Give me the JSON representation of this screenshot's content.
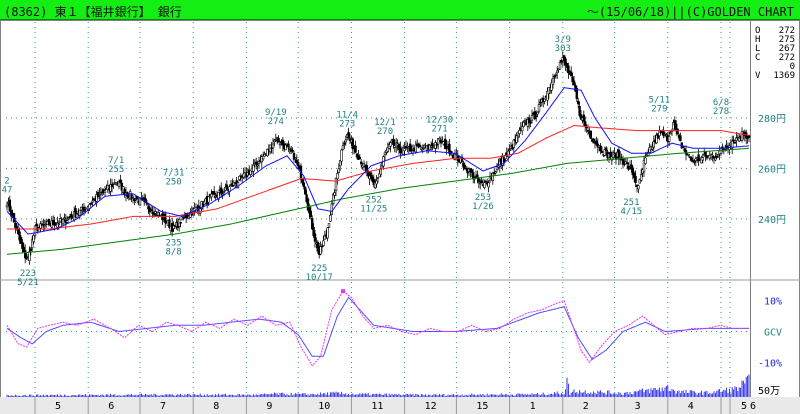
{
  "header": {
    "title": "(8362) 東１【福井銀行】 銀行",
    "right": "〜(15/06/18)||(C)GOLDEN CHART"
  },
  "ohlc_panel": [
    {
      "label": "O",
      "value": "272"
    },
    {
      "label": "H",
      "value": "275"
    },
    {
      "label": "L",
      "value": "267"
    },
    {
      "label": "C",
      "value": "272"
    },
    {
      "label": "",
      "value": "0"
    },
    {
      "label": "V",
      "value": "1369"
    }
  ],
  "colors": {
    "price_candles": "#000000",
    "ma_short": "#1010ff",
    "ma_mid": "#ff2020",
    "ma_long": "#008000",
    "gcv": "#ee33ee",
    "gcv_signal": "#5050ff",
    "volume": "#2020ee",
    "grid": "#2a9a7a",
    "axis_labels": "#208080",
    "title_bg": "#13ef13"
  },
  "chart_data": {
    "type": "candlestick",
    "title": "(8362) 東１【福井銀行】 銀行",
    "price_ticks": [
      {
        "value": 280,
        "label": "280円"
      },
      {
        "value": 260,
        "label": "260円"
      },
      {
        "value": 240,
        "label": "240円"
      }
    ],
    "price_range": [
      217,
      318
    ],
    "x_labels": [
      "5",
      "6",
      "7",
      "8",
      "9",
      "10",
      "11",
      "12",
      "15",
      "1",
      "2",
      "3",
      "4",
      "5",
      "6"
    ],
    "annotations": [
      {
        "date": "2",
        "price": "47",
        "kind": "edge"
      },
      {
        "date": "5/21",
        "price": "223",
        "kind": "low"
      },
      {
        "date": "7/1",
        "price": "255",
        "kind": "high"
      },
      {
        "date": "7/31",
        "price": "250",
        "kind": "high"
      },
      {
        "date": "8/8",
        "price": "235",
        "kind": "low"
      },
      {
        "date": "9/19",
        "price": "274",
        "kind": "high"
      },
      {
        "date": "10/17",
        "price": "225",
        "kind": "low"
      },
      {
        "date": "11/4",
        "price": "273",
        "kind": "high"
      },
      {
        "date": "11/25",
        "price": "252",
        "kind": "low"
      },
      {
        "date": "12/1",
        "price": "270",
        "kind": "high"
      },
      {
        "date": "12/30",
        "price": "271",
        "kind": "high"
      },
      {
        "date": "1/26",
        "price": "253",
        "kind": "low"
      },
      {
        "date": "3/9",
        "price": "303",
        "kind": "high"
      },
      {
        "date": "4/15",
        "price": "251",
        "kind": "low"
      },
      {
        "date": "5/11",
        "price": "279",
        "kind": "high"
      },
      {
        "date": "6/8",
        "price": "278",
        "kind": "high"
      }
    ],
    "price_anchors": [
      [
        0,
        247
      ],
      [
        6,
        237
      ],
      [
        12,
        226
      ],
      [
        15,
        224
      ],
      [
        20,
        236
      ],
      [
        30,
        238
      ],
      [
        40,
        239
      ],
      [
        55,
        244
      ],
      [
        63,
        248
      ],
      [
        72,
        252
      ],
      [
        78,
        255
      ],
      [
        86,
        250
      ],
      [
        95,
        247
      ],
      [
        105,
        243
      ],
      [
        112,
        240
      ],
      [
        119,
        236
      ],
      [
        125,
        240
      ],
      [
        135,
        244
      ],
      [
        145,
        248
      ],
      [
        158,
        252
      ],
      [
        172,
        258
      ],
      [
        185,
        266
      ],
      [
        192,
        272
      ],
      [
        196,
        270
      ],
      [
        200,
        268
      ],
      [
        205,
        265
      ],
      [
        212,
        254
      ],
      [
        216,
        242
      ],
      [
        220,
        232
      ],
      [
        223,
        226
      ],
      [
        228,
        234
      ],
      [
        232,
        245
      ],
      [
        236,
        258
      ],
      [
        240,
        270
      ],
      [
        243,
        273
      ],
      [
        248,
        268
      ],
      [
        254,
        262
      ],
      [
        259,
        256
      ],
      [
        262,
        253
      ],
      [
        266,
        258
      ],
      [
        270,
        266
      ],
      [
        275,
        270
      ],
      [
        282,
        267
      ],
      [
        290,
        268
      ],
      [
        300,
        268
      ],
      [
        309,
        271
      ],
      [
        315,
        268
      ],
      [
        322,
        264
      ],
      [
        330,
        259
      ],
      [
        336,
        255
      ],
      [
        340,
        253
      ],
      [
        346,
        257
      ],
      [
        352,
        262
      ],
      [
        358,
        266
      ],
      [
        364,
        272
      ],
      [
        370,
        278
      ],
      [
        376,
        280
      ],
      [
        382,
        286
      ],
      [
        388,
        293
      ],
      [
        393,
        300
      ],
      [
        397,
        303
      ],
      [
        402,
        297
      ],
      [
        406,
        290
      ],
      [
        409,
        282
      ],
      [
        413,
        277
      ],
      [
        418,
        272
      ],
      [
        424,
        268
      ],
      [
        430,
        265
      ],
      [
        436,
        265
      ],
      [
        442,
        262
      ],
      [
        447,
        258
      ],
      [
        451,
        252
      ],
      [
        455,
        262
      ],
      [
        460,
        268
      ],
      [
        466,
        274
      ],
      [
        472,
        272
      ],
      [
        476,
        278
      ],
      [
        480,
        271
      ],
      [
        485,
        266
      ],
      [
        490,
        263
      ],
      [
        496,
        264
      ],
      [
        502,
        265
      ],
      [
        506,
        265
      ],
      [
        510,
        267
      ],
      [
        514,
        269
      ],
      [
        518,
        271
      ],
      [
        522,
        272
      ],
      [
        526,
        274
      ],
      [
        531,
        272
      ]
    ],
    "ma_short_anchors": [
      [
        0,
        243
      ],
      [
        15,
        234
      ],
      [
        35,
        236
      ],
      [
        50,
        240
      ],
      [
        70,
        249
      ],
      [
        90,
        250
      ],
      [
        110,
        243
      ],
      [
        125,
        241
      ],
      [
        145,
        246
      ],
      [
        165,
        253
      ],
      [
        185,
        261
      ],
      [
        200,
        265
      ],
      [
        212,
        257
      ],
      [
        222,
        244
      ],
      [
        232,
        243
      ],
      [
        244,
        252
      ],
      [
        260,
        261
      ],
      [
        280,
        265
      ],
      [
        300,
        267
      ],
      [
        320,
        266
      ],
      [
        340,
        259
      ],
      [
        355,
        262
      ],
      [
        370,
        271
      ],
      [
        385,
        282
      ],
      [
        398,
        292
      ],
      [
        410,
        291
      ],
      [
        420,
        280
      ],
      [
        432,
        270
      ],
      [
        446,
        266
      ],
      [
        460,
        266
      ],
      [
        475,
        270
      ],
      [
        490,
        268
      ],
      [
        510,
        268
      ],
      [
        531,
        269
      ]
    ],
    "ma_mid_anchors": [
      [
        0,
        236
      ],
      [
        30,
        236
      ],
      [
        60,
        238
      ],
      [
        90,
        241
      ],
      [
        120,
        241
      ],
      [
        150,
        244
      ],
      [
        180,
        250
      ],
      [
        210,
        256
      ],
      [
        235,
        255
      ],
      [
        260,
        259
      ],
      [
        290,
        262
      ],
      [
        320,
        264
      ],
      [
        345,
        264
      ],
      [
        365,
        266
      ],
      [
        385,
        272
      ],
      [
        405,
        277
      ],
      [
        425,
        276
      ],
      [
        450,
        275
      ],
      [
        480,
        275
      ],
      [
        510,
        275
      ],
      [
        531,
        273
      ]
    ],
    "ma_long_anchors": [
      [
        0,
        226
      ],
      [
        40,
        228
      ],
      [
        80,
        231
      ],
      [
        120,
        234
      ],
      [
        160,
        238
      ],
      [
        200,
        243
      ],
      [
        240,
        248
      ],
      [
        280,
        252
      ],
      [
        320,
        255
      ],
      [
        360,
        258
      ],
      [
        400,
        262
      ],
      [
        440,
        264
      ],
      [
        480,
        266
      ],
      [
        531,
        268
      ]
    ],
    "gcv": {
      "ticks": [
        {
          "value": 10,
          "label": "10%"
        },
        {
          "value": 0,
          "label": "GCV"
        },
        {
          "value": -10,
          "label": "-10%"
        }
      ],
      "range": [
        -15,
        15
      ],
      "line_anchors": [
        [
          0,
          2
        ],
        [
          8,
          -4
        ],
        [
          14,
          -5
        ],
        [
          22,
          1
        ],
        [
          30,
          2
        ],
        [
          40,
          3
        ],
        [
          50,
          2
        ],
        [
          62,
          4
        ],
        [
          74,
          1
        ],
        [
          84,
          -2
        ],
        [
          94,
          2
        ],
        [
          104,
          0
        ],
        [
          114,
          3
        ],
        [
          122,
          2
        ],
        [
          132,
          0
        ],
        [
          142,
          3
        ],
        [
          152,
          1
        ],
        [
          162,
          4
        ],
        [
          172,
          2
        ],
        [
          182,
          5
        ],
        [
          192,
          2
        ],
        [
          202,
          3
        ],
        [
          210,
          -5
        ],
        [
          218,
          -11
        ],
        [
          224,
          -8
        ],
        [
          232,
          7
        ],
        [
          240,
          13
        ],
        [
          246,
          11
        ],
        [
          254,
          5
        ],
        [
          262,
          1
        ],
        [
          272,
          2
        ],
        [
          282,
          0
        ],
        [
          292,
          -1
        ],
        [
          302,
          1
        ],
        [
          312,
          0
        ],
        [
          322,
          0
        ],
        [
          332,
          2
        ],
        [
          342,
          0
        ],
        [
          352,
          1
        ],
        [
          362,
          4
        ],
        [
          372,
          6
        ],
        [
          382,
          7
        ],
        [
          392,
          9
        ],
        [
          398,
          10
        ],
        [
          404,
          2
        ],
        [
          410,
          -6
        ],
        [
          416,
          -10
        ],
        [
          424,
          -5
        ],
        [
          434,
          0
        ],
        [
          444,
          2
        ],
        [
          454,
          5
        ],
        [
          462,
          2
        ],
        [
          470,
          -1
        ],
        [
          480,
          0
        ],
        [
          490,
          1
        ],
        [
          500,
          1
        ],
        [
          510,
          2
        ],
        [
          518,
          1
        ],
        [
          531,
          1
        ]
      ],
      "signal_anchors": [
        [
          0,
          1
        ],
        [
          10,
          -2
        ],
        [
          18,
          -4
        ],
        [
          28,
          0
        ],
        [
          40,
          2
        ],
        [
          60,
          3
        ],
        [
          80,
          0
        ],
        [
          100,
          1
        ],
        [
          120,
          2
        ],
        [
          140,
          2
        ],
        [
          160,
          3
        ],
        [
          180,
          4
        ],
        [
          196,
          3
        ],
        [
          208,
          -1
        ],
        [
          218,
          -8
        ],
        [
          226,
          -8
        ],
        [
          236,
          5
        ],
        [
          244,
          11
        ],
        [
          252,
          7
        ],
        [
          262,
          2
        ],
        [
          290,
          0
        ],
        [
          320,
          0
        ],
        [
          350,
          1
        ],
        [
          380,
          6
        ],
        [
          398,
          8
        ],
        [
          408,
          -2
        ],
        [
          418,
          -9
        ],
        [
          428,
          -6
        ],
        [
          440,
          0
        ],
        [
          456,
          3
        ],
        [
          470,
          0
        ],
        [
          500,
          1
        ],
        [
          531,
          1
        ]
      ]
    },
    "volume": {
      "tick": {
        "value": 50,
        "label": "50万"
      },
      "range": [
        0,
        100
      ],
      "anchors": [
        [
          0,
          10
        ],
        [
          60,
          12
        ],
        [
          120,
          14
        ],
        [
          180,
          12
        ],
        [
          190,
          18
        ],
        [
          215,
          15
        ],
        [
          235,
          22
        ],
        [
          250,
          16
        ],
        [
          300,
          12
        ],
        [
          340,
          14
        ],
        [
          380,
          16
        ],
        [
          398,
          25
        ],
        [
          400,
          92
        ],
        [
          402,
          20
        ],
        [
          406,
          38
        ],
        [
          410,
          32
        ],
        [
          420,
          30
        ],
        [
          440,
          22
        ],
        [
          460,
          40
        ],
        [
          472,
          55
        ],
        [
          480,
          30
        ],
        [
          500,
          25
        ],
        [
          520,
          45
        ],
        [
          530,
          90
        ],
        [
          531,
          30
        ]
      ]
    }
  }
}
